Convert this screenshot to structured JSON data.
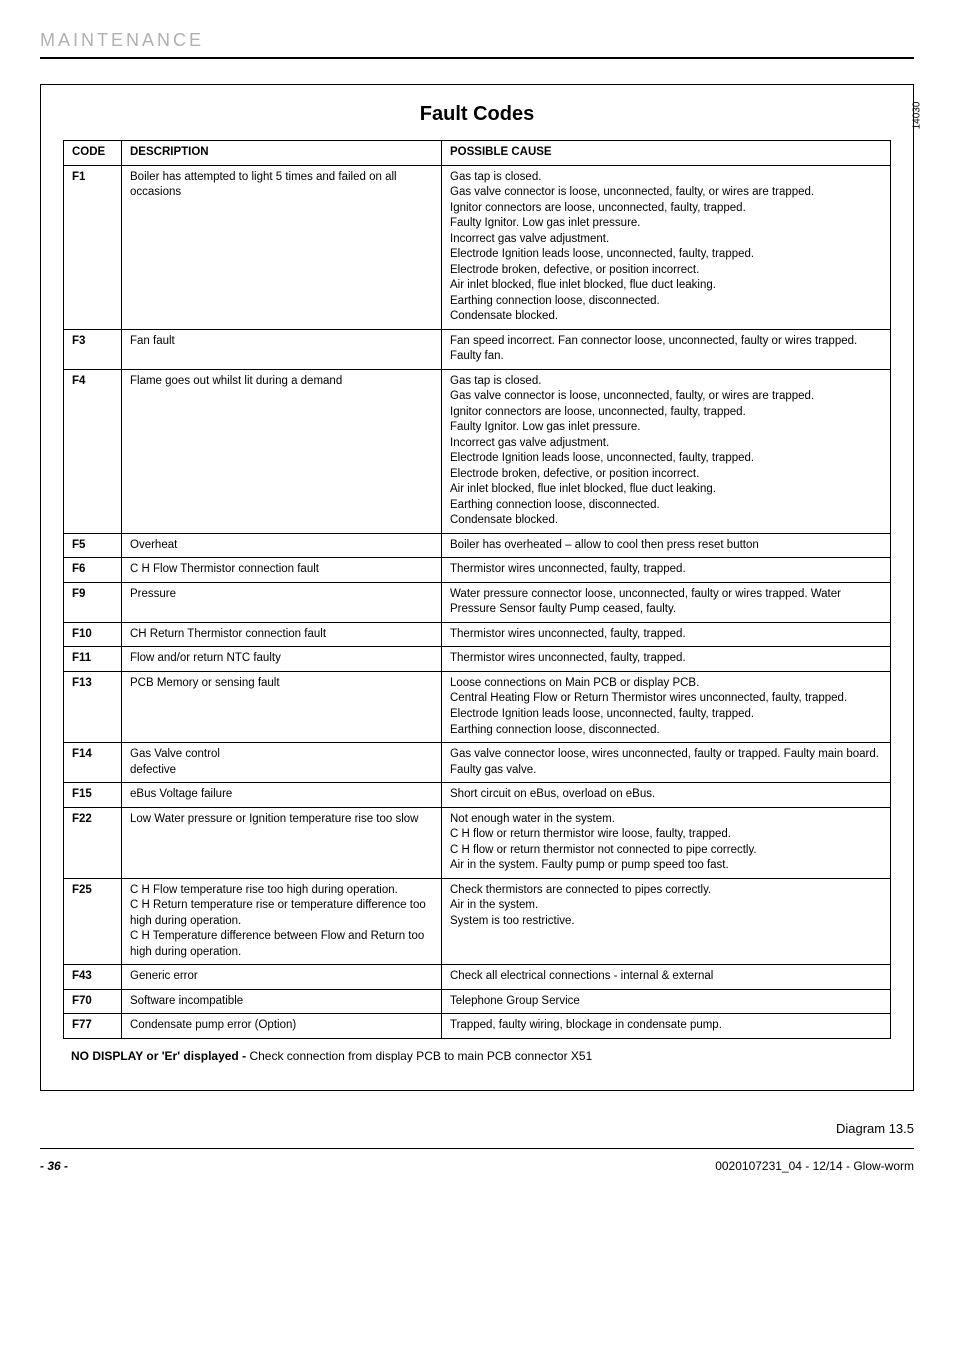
{
  "section_header": "MAINTENANCE",
  "side_label": "14030",
  "title": "Fault Codes",
  "table": {
    "headers": {
      "code": "CODE",
      "description": "DESCRIPTION",
      "cause": "POSSIBLE CAUSE"
    },
    "rows": [
      {
        "code": "F1",
        "description": "Boiler has attempted to light 5 times and failed on all occasions",
        "cause": "Gas tap is closed.\nGas valve connector is loose, unconnected, faulty, or wires are trapped.\nIgnitor connectors are loose, unconnected, faulty, trapped.\nFaulty Ignitor. Low gas inlet pressure.\nIncorrect gas valve adjustment.\nElectrode Ignition leads loose, unconnected, faulty, trapped.\nElectrode broken, defective, or position incorrect.\nAir inlet blocked, flue inlet blocked, flue duct leaking.\nEarthing connection loose, disconnected.\nCondensate blocked."
      },
      {
        "code": "F3",
        "description": "Fan fault",
        "cause": "Fan speed incorrect. Fan connector loose, unconnected, faulty or wires trapped. Faulty fan."
      },
      {
        "code": "F4",
        "description": "Flame goes out whilst lit during a demand",
        "cause": "Gas tap is closed.\nGas valve connector is loose, unconnected, faulty, or wires are trapped.\nIgnitor connectors are loose, unconnected, faulty, trapped.\nFaulty Ignitor. Low gas inlet pressure.\nIncorrect gas valve adjustment.\nElectrode Ignition leads loose, unconnected, faulty, trapped.\nElectrode broken, defective, or position incorrect.\nAir inlet blocked, flue inlet blocked, flue duct leaking.\nEarthing connection loose, disconnected.\nCondensate blocked."
      },
      {
        "code": "F5",
        "description": "Overheat",
        "cause": "Boiler has overheated – allow to cool then press reset button"
      },
      {
        "code": "F6",
        "description": "C H  Flow Thermistor connection fault",
        "cause": "Thermistor wires unconnected, faulty, trapped."
      },
      {
        "code": "F9",
        "description": "Pressure",
        "cause": "Water pressure connector loose, unconnected, faulty or wires trapped. Water Pressure Sensor faulty  Pump ceased, faulty."
      },
      {
        "code": "F10",
        "description": "CH Return Thermistor connection fault",
        "cause": "Thermistor wires unconnected, faulty, trapped."
      },
      {
        "code": "F11",
        "description": "Flow and/or return NTC faulty",
        "cause": "Thermistor wires unconnected,  faulty,  trapped."
      },
      {
        "code": "F13",
        "description": "PCB Memory or sensing fault",
        "cause": "Loose connections on Main PCB or display PCB.\nCentral Heating Flow or Return Thermistor wires unconnected, faulty, trapped.\nElectrode Ignition leads loose, unconnected, faulty, trapped.\nEarthing connection loose, disconnected."
      },
      {
        "code": "F14",
        "description": "Gas Valve control\ndefective",
        "cause": "Gas valve connector loose,  wires unconnected, faulty or trapped.  Faulty main board.  Faulty gas valve."
      },
      {
        "code": "F15",
        "description": "eBus Voltage failure",
        "cause": "Short circuit on eBus, overload on eBus."
      },
      {
        "code": "F22",
        "description": "Low Water pressure or Ignition temperature rise too slow",
        "cause": "Not enough water in the system.\nC H flow or return thermistor wire loose, faulty, trapped.\nC H flow or return thermistor not connected to pipe correctly.\nAir in the system. Faulty pump or pump speed too fast."
      },
      {
        "code": "F25",
        "description": "C H Flow temperature rise too high during operation.\nC H Return temperature rise or temperature difference too high during operation.\nC H Temperature difference between Flow and Return too high during operation.",
        "cause": "Check thermistors are connected to pipes correctly.\nAir in the system.\nSystem is too restrictive."
      },
      {
        "code": "F43",
        "description": "Generic error",
        "cause": "Check all electrical connections - internal & external"
      },
      {
        "code": "F70",
        "description": "Software incompatible",
        "cause": "Telephone Group Service"
      },
      {
        "code": "F77",
        "description": "Condensate pump error (Option)",
        "cause": "Trapped, faulty wiring, blockage in condensate pump."
      }
    ]
  },
  "footnote_bold": "NO DISPLAY  or 'Er' displayed  -  ",
  "footnote_rest": "Check connection from display PCB to main PCB connector X51",
  "diagram_label": "Diagram 13.5",
  "page_number": "- 36 -",
  "footer_right": "0020107231_04 - 12/14 - Glow-worm"
}
